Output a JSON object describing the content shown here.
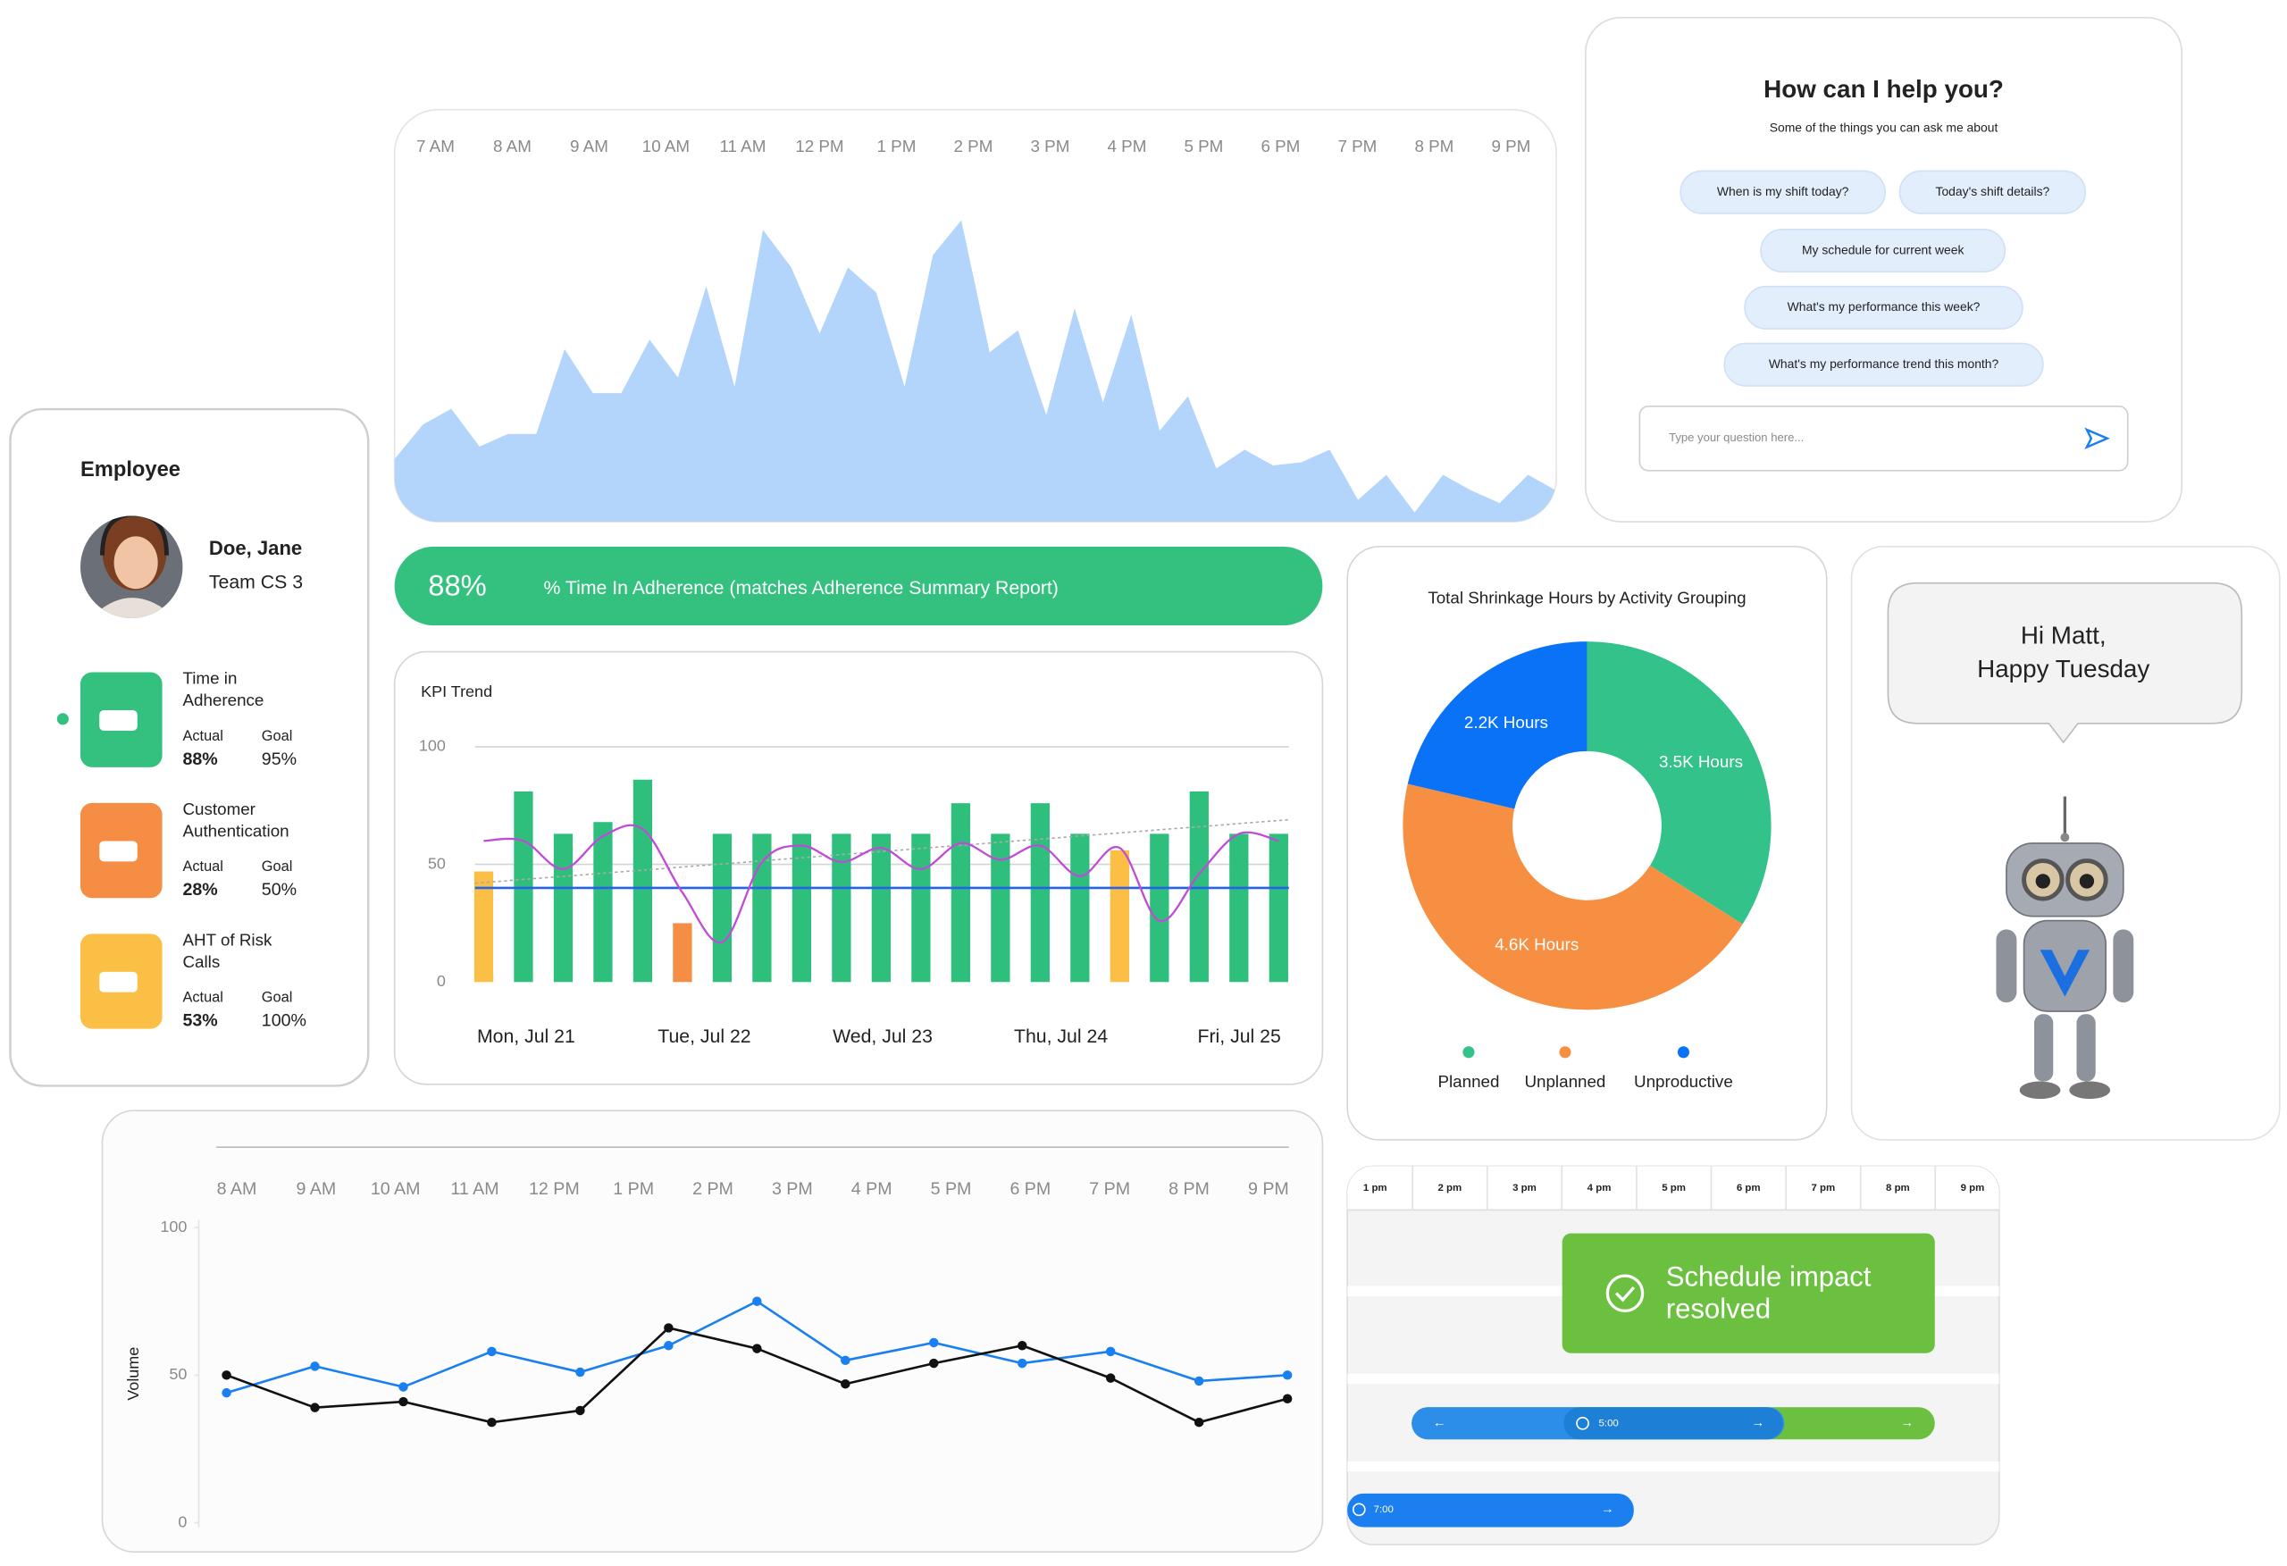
{
  "area_chart": {
    "type": "area",
    "x_labels": [
      "7 AM",
      "8 AM",
      "9 AM",
      "10 AM",
      "11 AM",
      "12 PM",
      "1 PM",
      "2 PM",
      "3 PM",
      "4 PM",
      "5 PM",
      "6 PM",
      "7 PM",
      "8 PM",
      "9 PM"
    ],
    "values": [
      19,
      30,
      35,
      23,
      27,
      27,
      54,
      40,
      40,
      57,
      45,
      74,
      42,
      92,
      80,
      59,
      80,
      72,
      42,
      84,
      95,
      53,
      60,
      33,
      67,
      37,
      65,
      28,
      39,
      16,
      22,
      17,
      18,
      22,
      6,
      14,
      2,
      14,
      9,
      5,
      14,
      9
    ],
    "ylim": [
      0,
      100
    ],
    "color": "#b3d4fb"
  },
  "assistant": {
    "title": "How can I help you?",
    "subtitle": "Some of the things you can ask me about",
    "suggestions": [
      "When is my shift today?",
      "Today's shift details?",
      "My schedule for current week",
      "What's my performance this week?",
      "What's my performance trend this month?"
    ],
    "input_placeholder": "Type your question here..."
  },
  "employee": {
    "heading": "Employee",
    "name": "Doe, Jane",
    "team": "Team CS 3",
    "actual_label": "Actual",
    "goal_label": "Goal",
    "metrics": [
      {
        "label_lines": [
          "Time in",
          "Adherence"
        ],
        "actual": "88%",
        "goal": "95%",
        "color": "#34c17f"
      },
      {
        "label_lines": [
          "Customer",
          "Authentication"
        ],
        "actual": "28%",
        "goal": "50%",
        "color": "#f68d45"
      },
      {
        "label_lines": [
          "AHT of Risk",
          "Calls"
        ],
        "actual": "53%",
        "goal": "100%",
        "color": "#fbbf45"
      }
    ]
  },
  "adherence": {
    "value": "88%",
    "label": "% Time In Adherence (matches Adherence Summary Report)",
    "color": "#34c17f"
  },
  "kpi_trend": {
    "type": "bar",
    "title": "KPI Trend",
    "x_labels": [
      "Mon, Jul 21",
      "Tue, Jul 22",
      "Wed, Jul 23",
      "Thu, Jul 24",
      "Fri, Jul 25"
    ],
    "values": [
      47,
      81,
      63,
      68,
      86,
      25,
      63,
      63,
      63,
      63,
      63,
      63,
      76,
      63,
      76,
      63,
      56,
      63,
      81,
      63,
      63
    ],
    "colors": [
      "#fbbf45",
      "#2fbf7d",
      "#2fbf7d",
      "#2fbf7d",
      "#2fbf7d",
      "#f68d45",
      "#2fbf7d",
      "#2fbf7d",
      "#2fbf7d",
      "#2fbf7d",
      "#2fbf7d",
      "#2fbf7d",
      "#2fbf7d",
      "#2fbf7d",
      "#2fbf7d",
      "#2fbf7d",
      "#fbbf45",
      "#2fbf7d",
      "#2fbf7d",
      "#2fbf7d",
      "#2fbf7d"
    ],
    "ylim": [
      0,
      100
    ],
    "yticks": [
      0,
      50,
      100
    ],
    "target": {
      "value": 40,
      "color": "#2563eb"
    },
    "line": {
      "values": [
        60,
        60,
        48,
        62,
        65,
        38,
        17,
        51,
        58,
        51,
        57,
        48,
        59,
        52,
        58,
        45,
        57,
        26,
        46,
        63,
        60
      ],
      "color": "#c04bd6"
    },
    "trend": {
      "values": [
        42,
        69
      ],
      "color": "#aaaaaa"
    }
  },
  "shrinkage": {
    "type": "pie",
    "title": "Total Shrinkage Hours by Activity Grouping",
    "categories": [
      "Planned",
      "Unplanned",
      "Unproductive"
    ],
    "values": [
      3500,
      4600,
      2200
    ],
    "value_labels": [
      "3.5K Hours",
      "4.6K Hours",
      "2.2K Hours"
    ],
    "colors": [
      "#33c28a",
      "#f78f43",
      "#0a72f6"
    ]
  },
  "greeting": {
    "lines": [
      "Hi Matt,",
      "Happy Tuesday"
    ]
  },
  "volume_chart": {
    "type": "line",
    "y_label": "Volume",
    "x_labels": [
      "8 AM",
      "9 AM",
      "10 AM",
      "11 AM",
      "12 PM",
      "1 PM",
      "2 PM",
      "3 PM",
      "4 PM",
      "5 PM",
      "6 PM",
      "7 PM",
      "8 PM",
      "9 PM"
    ],
    "ylim": [
      0,
      100
    ],
    "yticks": [
      0,
      50,
      100
    ],
    "series": [
      {
        "color": "#1a7ff0",
        "values": [
          44,
          53,
          46,
          58,
          51,
          60,
          75,
          55,
          61,
          54,
          58,
          48,
          50
        ]
      },
      {
        "color": "#111111",
        "values": [
          50,
          39,
          41,
          34,
          38,
          66,
          59,
          47,
          54,
          60,
          49,
          34,
          42
        ]
      }
    ]
  },
  "schedule": {
    "hours": [
      "1 pm",
      "2 pm",
      "3 pm",
      "4 pm",
      "5 pm",
      "6 pm",
      "7 pm",
      "8 pm",
      "9 pm"
    ],
    "notice_lines": [
      "Schedule impact",
      "resolved"
    ],
    "shifts": [
      "5:00",
      "7:00"
    ]
  }
}
